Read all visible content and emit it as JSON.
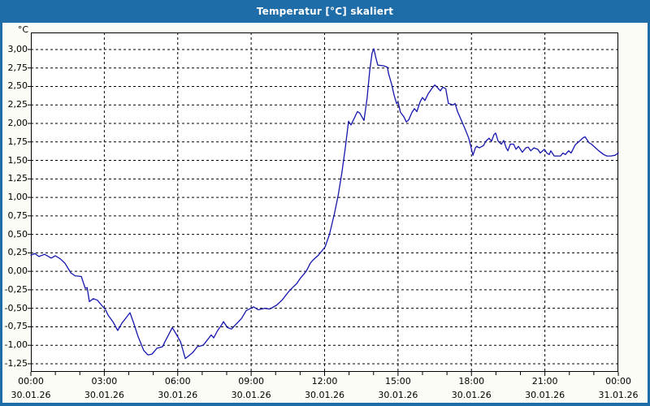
{
  "window": {
    "title": "Temperatur [°C] skaliert"
  },
  "colors": {
    "titlebar": "#1f6da8",
    "title_text": "#ffffff",
    "window_bg": "#fcfcf7",
    "plot_bg": "#ffffff",
    "grid": "#000000",
    "axis": "#000000",
    "line": "#1616ae",
    "label_text": "#000000"
  },
  "chart_data": {
    "type": "line",
    "title": "Temperatur [°C] skaliert",
    "ylabel": "°C",
    "xlabel": "",
    "grid": "dashed",
    "legend_position": "none",
    "ylim": [
      -1.36,
      3.23
    ],
    "xlim_hours": [
      0,
      24
    ],
    "y_axis": {
      "unit": "°C",
      "tick_labels": [
        "3,00",
        "2,75",
        "2,50",
        "2,25",
        "2,00",
        "1,75",
        "1,50",
        "1,25",
        "1,00",
        "0,75",
        "0,50",
        "0,25",
        "0,00",
        "-0,25",
        "-0,50",
        "-0,75",
        "-1,00",
        "-1,25"
      ]
    },
    "x_axis": {
      "major_tick_hours": 3,
      "minor_tick_hours": 1,
      "majors": [
        {
          "time": "00:00",
          "date": "30.01.26"
        },
        {
          "time": "03:00",
          "date": "30.01.26"
        },
        {
          "time": "06:00",
          "date": "30.01.26"
        },
        {
          "time": "09:00",
          "date": "30.01.26"
        },
        {
          "time": "12:00",
          "date": "30.01.26"
        },
        {
          "time": "15:00",
          "date": "30.01.26"
        },
        {
          "time": "18:00",
          "date": "30.01.26"
        },
        {
          "time": "21:00",
          "date": "30.01.26"
        },
        {
          "time": "00:00",
          "date": "31.01.26"
        }
      ]
    },
    "series": [
      {
        "name": "Temperatur",
        "color": "#1616ae",
        "points": [
          [
            0.0,
            0.22
          ],
          [
            0.17,
            0.24
          ],
          [
            0.33,
            0.2
          ],
          [
            0.56,
            0.23
          ],
          [
            0.83,
            0.18
          ],
          [
            1.0,
            0.21
          ],
          [
            1.2,
            0.17
          ],
          [
            1.39,
            0.11
          ],
          [
            1.63,
            -0.02
          ],
          [
            1.8,
            -0.06
          ],
          [
            2.06,
            -0.07
          ],
          [
            2.22,
            -0.23
          ],
          [
            2.3,
            -0.22
          ],
          [
            2.39,
            -0.41
          ],
          [
            2.55,
            -0.37
          ],
          [
            2.72,
            -0.39
          ],
          [
            2.89,
            -0.46
          ],
          [
            3.05,
            -0.52
          ],
          [
            3.15,
            -0.59
          ],
          [
            3.35,
            -0.68
          ],
          [
            3.55,
            -0.8
          ],
          [
            3.72,
            -0.7
          ],
          [
            4.05,
            -0.56
          ],
          [
            4.2,
            -0.7
          ],
          [
            4.38,
            -0.88
          ],
          [
            4.61,
            -1.07
          ],
          [
            4.78,
            -1.13
          ],
          [
            4.95,
            -1.12
          ],
          [
            5.15,
            -1.04
          ],
          [
            5.38,
            -1.02
          ],
          [
            5.48,
            -0.95
          ],
          [
            5.78,
            -0.76
          ],
          [
            5.94,
            -0.85
          ],
          [
            6.11,
            -0.95
          ],
          [
            6.31,
            -1.18
          ],
          [
            6.61,
            -1.1
          ],
          [
            6.8,
            -1.02
          ],
          [
            7.04,
            -1.0
          ],
          [
            7.37,
            -0.86
          ],
          [
            7.47,
            -0.9
          ],
          [
            7.63,
            -0.8
          ],
          [
            7.8,
            -0.72
          ],
          [
            7.87,
            -0.68
          ],
          [
            8.03,
            -0.76
          ],
          [
            8.2,
            -0.78
          ],
          [
            8.37,
            -0.72
          ],
          [
            8.6,
            -0.64
          ],
          [
            8.8,
            -0.53
          ],
          [
            9.1,
            -0.48
          ],
          [
            9.29,
            -0.52
          ],
          [
            9.55,
            -0.5
          ],
          [
            9.76,
            -0.51
          ],
          [
            10.03,
            -0.46
          ],
          [
            10.26,
            -0.39
          ],
          [
            10.52,
            -0.28
          ],
          [
            10.69,
            -0.22
          ],
          [
            10.85,
            -0.17
          ],
          [
            11.02,
            -0.09
          ],
          [
            11.25,
            0.0
          ],
          [
            11.42,
            0.11
          ],
          [
            11.52,
            0.15
          ],
          [
            11.75,
            0.22
          ],
          [
            12.02,
            0.33
          ],
          [
            12.2,
            0.5
          ],
          [
            12.4,
            0.78
          ],
          [
            12.55,
            1.02
          ],
          [
            12.7,
            1.32
          ],
          [
            12.85,
            1.68
          ],
          [
            12.98,
            2.03
          ],
          [
            13.08,
            1.98
          ],
          [
            13.2,
            2.06
          ],
          [
            13.34,
            2.16
          ],
          [
            13.44,
            2.14
          ],
          [
            13.61,
            2.04
          ],
          [
            13.74,
            2.35
          ],
          [
            13.84,
            2.7
          ],
          [
            13.94,
            2.95
          ],
          [
            14.01,
            3.01
          ],
          [
            14.1,
            2.88
          ],
          [
            14.17,
            2.79
          ],
          [
            14.4,
            2.78
          ],
          [
            14.57,
            2.76
          ],
          [
            14.61,
            2.68
          ],
          [
            14.74,
            2.53
          ],
          [
            14.84,
            2.38
          ],
          [
            14.94,
            2.27
          ],
          [
            15.0,
            2.29
          ],
          [
            15.1,
            2.15
          ],
          [
            15.24,
            2.09
          ],
          [
            15.34,
            2.02
          ],
          [
            15.44,
            2.05
          ],
          [
            15.57,
            2.15
          ],
          [
            15.67,
            2.2
          ],
          [
            15.77,
            2.16
          ],
          [
            15.9,
            2.29
          ],
          [
            16.0,
            2.35
          ],
          [
            16.1,
            2.31
          ],
          [
            16.23,
            2.4
          ],
          [
            16.4,
            2.48
          ],
          [
            16.5,
            2.52
          ],
          [
            16.6,
            2.49
          ],
          [
            16.73,
            2.44
          ],
          [
            16.83,
            2.49
          ],
          [
            16.95,
            2.47
          ],
          [
            17.06,
            2.27
          ],
          [
            17.26,
            2.25
          ],
          [
            17.33,
            2.27
          ],
          [
            17.43,
            2.16
          ],
          [
            17.59,
            2.04
          ],
          [
            17.76,
            1.91
          ],
          [
            17.89,
            1.8
          ],
          [
            17.99,
            1.67
          ],
          [
            18.06,
            1.57
          ],
          [
            18.16,
            1.67
          ],
          [
            18.22,
            1.69
          ],
          [
            18.32,
            1.67
          ],
          [
            18.49,
            1.7
          ],
          [
            18.59,
            1.76
          ],
          [
            18.72,
            1.8
          ],
          [
            18.82,
            1.76
          ],
          [
            18.92,
            1.85
          ],
          [
            18.99,
            1.87
          ],
          [
            19.09,
            1.76
          ],
          [
            19.22,
            1.72
          ],
          [
            19.32,
            1.77
          ],
          [
            19.42,
            1.67
          ],
          [
            19.49,
            1.63
          ],
          [
            19.59,
            1.72
          ],
          [
            19.72,
            1.72
          ],
          [
            19.82,
            1.65
          ],
          [
            19.92,
            1.69
          ],
          [
            20.08,
            1.61
          ],
          [
            20.22,
            1.67
          ],
          [
            20.32,
            1.68
          ],
          [
            20.42,
            1.63
          ],
          [
            20.55,
            1.67
          ],
          [
            20.71,
            1.65
          ],
          [
            20.81,
            1.6
          ],
          [
            20.98,
            1.65
          ],
          [
            21.08,
            1.6
          ],
          [
            21.18,
            1.58
          ],
          [
            21.24,
            1.63
          ],
          [
            21.38,
            1.56
          ],
          [
            21.64,
            1.56
          ],
          [
            21.74,
            1.6
          ],
          [
            21.84,
            1.58
          ],
          [
            21.97,
            1.63
          ],
          [
            22.07,
            1.6
          ],
          [
            22.24,
            1.71
          ],
          [
            22.41,
            1.76
          ],
          [
            22.54,
            1.8
          ],
          [
            22.64,
            1.82
          ],
          [
            22.8,
            1.74
          ],
          [
            22.9,
            1.72
          ],
          [
            23.07,
            1.67
          ],
          [
            23.2,
            1.63
          ],
          [
            23.4,
            1.58
          ],
          [
            23.53,
            1.56
          ],
          [
            23.7,
            1.56
          ],
          [
            23.87,
            1.57
          ],
          [
            24.0,
            1.6
          ]
        ]
      }
    ]
  }
}
